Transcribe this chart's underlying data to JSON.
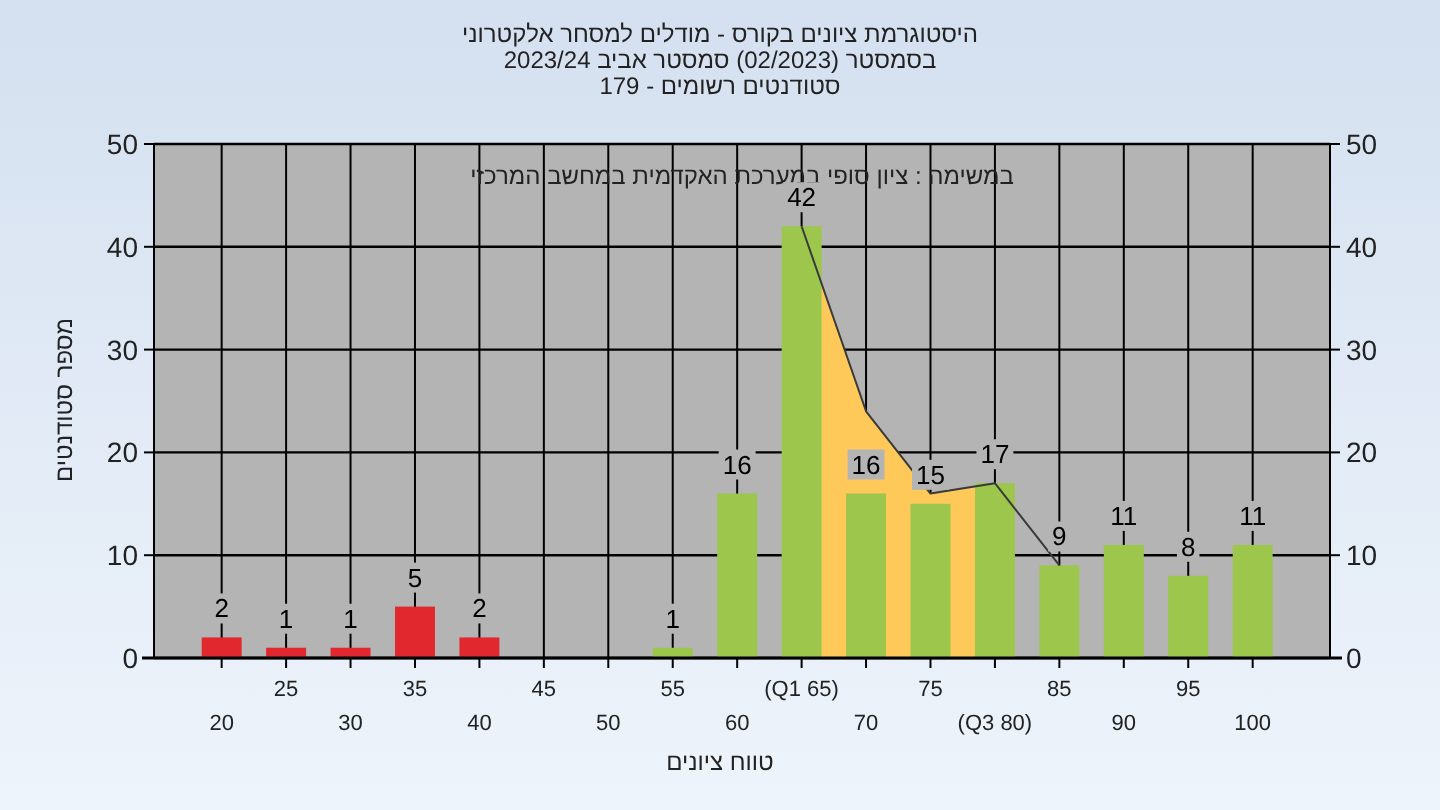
{
  "chart_data": {
    "type": "bar",
    "title": "היסטוגרמת ציונים בקורס - מודלים למסחר אלקטרוני",
    "subtitle": [
      "בסמסטר  (02/2023)  סמסטר אביב 2023/24",
      "סטודנטים רשומים - 179"
    ],
    "xlabel": "טווח ציונים",
    "ylabel": "מספר סטודנטים",
    "annotations": [
      "במשימה : ציון סופי במערכת האקדמית במחשב המרכזי"
    ],
    "categories": [
      "20",
      "25",
      "30",
      "35",
      "40",
      "45",
      "50",
      "55",
      "60",
      "(Q1 65)",
      "70",
      "75",
      "(Q3 80)",
      "85",
      "90",
      "95",
      "100"
    ],
    "series": [
      {
        "type": "area",
        "color": "#ffc95a",
        "x": [
          "(Q1 65)",
          "70",
          "75",
          "(Q3 80)"
        ],
        "values": [
          42,
          24,
          16,
          17
        ]
      },
      {
        "values": [
          2,
          1,
          1,
          5,
          2,
          0,
          0,
          1,
          16,
          42,
          16,
          15,
          17,
          9,
          11,
          8,
          11
        ],
        "value_labels": [
          "2",
          "1",
          "1",
          "5",
          "2",
          null,
          null,
          "1",
          "16",
          "42",
          "16",
          "15",
          "17",
          "9",
          "11",
          "8",
          "11"
        ],
        "colors": [
          "#e0282e",
          "#e0282e",
          "#e0282e",
          "#e0282e",
          "#e0282e",
          "#e0282e",
          "#e0282e",
          "#9cc64c",
          "#9cc64c",
          "#9cc64c",
          "#9cc64c",
          "#9cc64c",
          "#9cc64c",
          "#9cc64c",
          "#9cc64c",
          "#9cc64c",
          "#9cc64c"
        ]
      },
      {
        "type": "line",
        "color": "#3a3a3a",
        "x": [
          "(Q1 65)",
          "70",
          "75",
          "(Q3 80)",
          "85"
        ],
        "values": [
          42,
          24,
          16,
          17,
          9
        ]
      }
    ],
    "ylim": [
      0,
      50
    ],
    "yticks": [
      0,
      10,
      20,
      30,
      40,
      50
    ],
    "y2lim": [
      0,
      50
    ],
    "y2ticks": [
      0,
      10,
      20,
      30,
      40,
      50
    ],
    "grid": true
  }
}
